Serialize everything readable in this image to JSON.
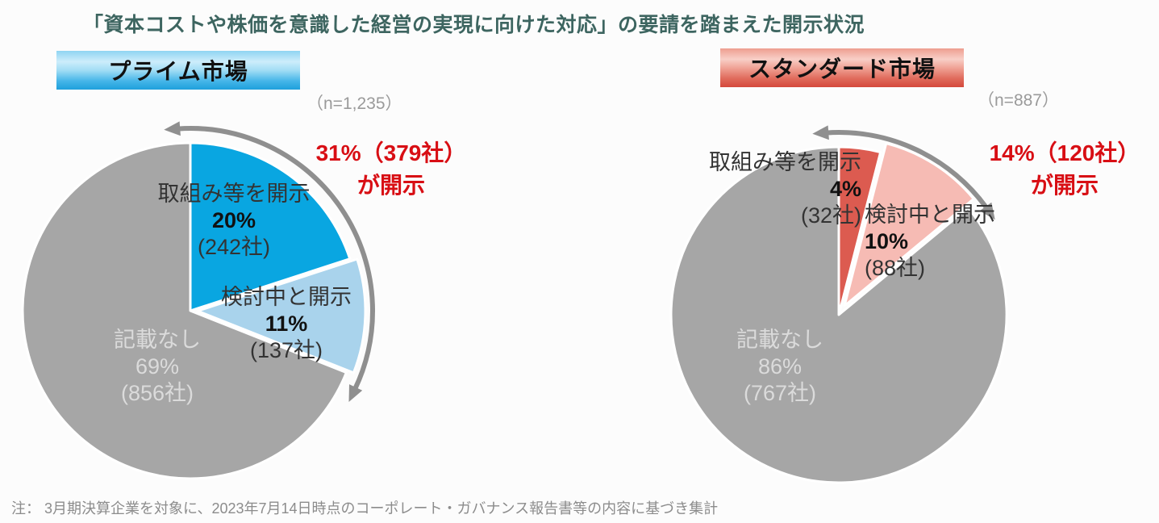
{
  "title": "「資本コストや株価を意識した経営の実現に向けた対応」の要請を踏まえた開示状況",
  "note": "注： 3月期決算企業を対象に、2023年7月14日時点のコーポレート・ガバナンス報告書等の内容に基づき集計",
  "colors": {
    "title_text": "#3D6560",
    "annotation_red": "#D80E14",
    "arrow_gray": "#8F8F8F",
    "prime_blue": "#09A6E1",
    "prime_light_blue": "#A9D3EC",
    "standard_red": "#DC5B50",
    "standard_pink": "#F6BBB4",
    "none_gray": "#A6A6A6"
  },
  "chart_data": [
    {
      "type": "pie",
      "market_label": "プライム市場",
      "n_label": "（n=1,235）",
      "start_angle_deg": 0,
      "slices": [
        {
          "label": "取組み等を開示",
          "pct": 20,
          "pct_label": "20%",
          "count_label": "(242社)",
          "color": "#09A6E1",
          "exploded": false
        },
        {
          "label": "検討中と開示",
          "pct": 11,
          "pct_label": "11%",
          "count_label": "(137社)",
          "color": "#A9D3EC",
          "exploded": true
        },
        {
          "label": "記載なし",
          "pct": 69,
          "pct_label": "69%",
          "count_label": "(856社)",
          "color": "#A6A6A6",
          "exploded": false
        }
      ],
      "disclosed_pct": 31,
      "annotation_line1": "31%（379社）",
      "annotation_line2": "が開示"
    },
    {
      "type": "pie",
      "market_label": "スタンダード市場",
      "n_label": "（n=887）",
      "start_angle_deg": 0,
      "slices": [
        {
          "label": "取組み等を開示",
          "pct": 4,
          "pct_label": "4%",
          "count_label": "(32社)",
          "color": "#DC5B50",
          "exploded": false
        },
        {
          "label": "検討中と開示",
          "pct": 10,
          "pct_label": "10%",
          "count_label": "(88社)",
          "color": "#F6BBB4",
          "exploded": true
        },
        {
          "label": "記載なし",
          "pct": 86,
          "pct_label": "86%",
          "count_label": "(767社)",
          "color": "#A6A6A6",
          "exploded": false
        }
      ],
      "disclosed_pct": 14,
      "annotation_line1": "14%（120社）",
      "annotation_line2": "が開示"
    }
  ]
}
